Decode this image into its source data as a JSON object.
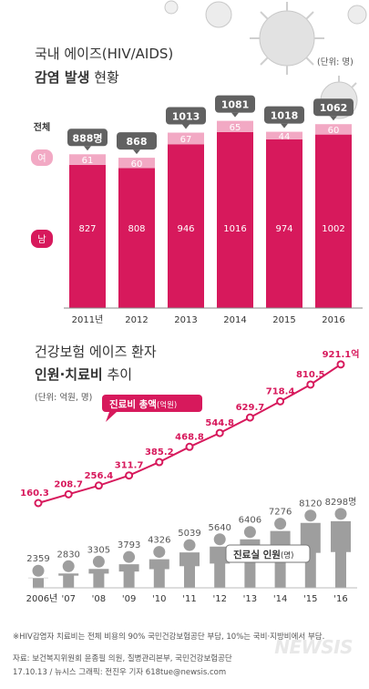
{
  "section1": {
    "title_line1": "국내 에이즈(HIV/AIDS)",
    "title_line2_bold": "감염 발생",
    "title_line2_rest": " 현황",
    "unit": "(단위: 명)",
    "row_labels": {
      "total": "전체",
      "female": "여",
      "male": "남"
    }
  },
  "section2": {
    "title_line1": "건강보험 에이즈 환자",
    "title_line2_bold": "인원·치료비",
    "title_line2_rest": " 추이",
    "unit": "(단위: 억원, 명)",
    "cost_legend_bold": "진료비 총액",
    "cost_legend_small": "(억원)",
    "people_legend_bold": "진료실 인원",
    "people_legend_small": "(명)"
  },
  "footnote": "※HIV감염자 치료비는 전체 비용의 90% 국민건강보험공단 부담, 10%는 국비·지방비에서 부담.",
  "source_line1": "자료: 보건복지위원회 윤종필 의원, 질병관리본부, 국민건강보험공단",
  "source_line2": "17.10.13 / 뉴시스 그래픽: 전진우 기자 618tue@newsis.com",
  "logo": "NEWSIS",
  "colors": {
    "male": "#d7195c",
    "female": "#f2a9c4",
    "line": "#d7195c",
    "people": "#9e9e9e",
    "callout": "#616161"
  },
  "chart_data": [
    {
      "type": "bar",
      "title": "국내 에이즈(HIV/AIDS) 감염 발생 현황",
      "categories": [
        "2011년",
        "2012",
        "2013",
        "2014",
        "2015",
        "2016"
      ],
      "series": [
        {
          "name": "남",
          "values": [
            827,
            808,
            946,
            1016,
            974,
            1002
          ]
        },
        {
          "name": "여",
          "values": [
            61,
            60,
            67,
            65,
            44,
            60
          ]
        }
      ],
      "totals": [
        "888명",
        "868",
        "1013",
        "1081",
        "1018",
        "1062"
      ],
      "total_label": "전체",
      "stacked": true,
      "unit": "(단위: 명)"
    },
    {
      "type": "line",
      "title": "건강보험 에이즈 환자 인원·치료비 추이",
      "categories": [
        "2006년",
        "'07",
        "'08",
        "'09",
        "'10",
        "'11",
        "'12",
        "'13",
        "'14",
        "'15",
        "'16"
      ],
      "series": [
        {
          "name": "진료비 총액",
          "values": [
            160.3,
            208.7,
            256.4,
            311.7,
            385.2,
            468.8,
            544.8,
            629.7,
            718.4,
            810.5,
            921.1
          ],
          "labels": [
            "160.3",
            "208.7",
            "256.4",
            "311.7",
            "385.2",
            "468.8",
            "544.8",
            "629.7",
            "718.4",
            "810.5",
            "921.1억"
          ]
        },
        {
          "name": "진료실 인원",
          "values": [
            2359,
            2830,
            3305,
            3793,
            4326,
            5039,
            5640,
            6406,
            7276,
            8120,
            8298
          ],
          "labels": [
            "2359",
            "2830",
            "3305",
            "3793",
            "4326",
            "5039",
            "5640",
            "6406",
            "7276",
            "8120",
            "8298명"
          ]
        }
      ],
      "unit": "(단위: 억원, 명)"
    }
  ]
}
